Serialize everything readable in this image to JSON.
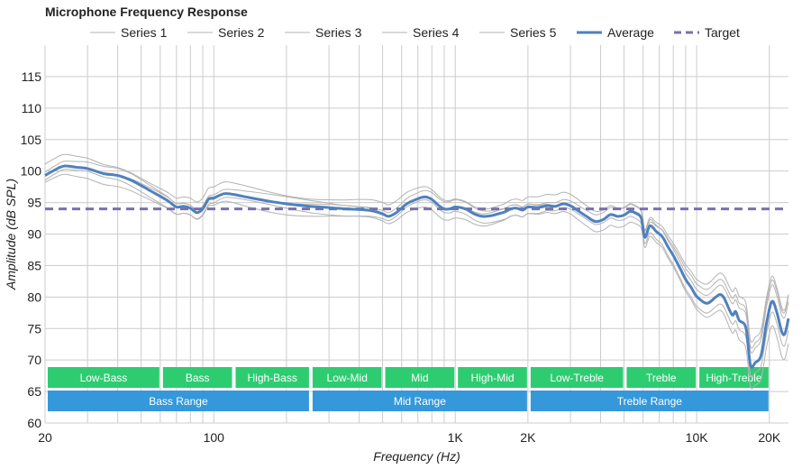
{
  "chart_data": {
    "type": "line",
    "title": "Microphone Frequency Response",
    "xlabel": "Frequency (Hz)",
    "ylabel": "Amplitude (dB SPL)",
    "xscale": "log",
    "xlim": [
      20,
      24000
    ],
    "ylim": [
      60,
      120
    ],
    "yticks": [
      60,
      65,
      70,
      75,
      80,
      85,
      90,
      95,
      100,
      105,
      110,
      115
    ],
    "xticks": [
      {
        "value": 20,
        "label": "20"
      },
      {
        "value": 100,
        "label": "100"
      },
      {
        "value": 1000,
        "label": "1K"
      },
      {
        "value": 2000,
        "label": "2K"
      },
      {
        "value": 10000,
        "label": "10K"
      },
      {
        "value": 20000,
        "label": "20K"
      }
    ],
    "legend_position": "top",
    "legend": [
      "Series 1",
      "Series 2",
      "Series 3",
      "Series 4",
      "Series 5",
      "Average",
      "Target"
    ],
    "target_value": 94,
    "colors": {
      "average": "#4f81bd",
      "series": "#b3b3b3",
      "target": "#7b6fad",
      "band_green": "#2ecc71",
      "band_blue": "#3498db",
      "grid": "#cccccc"
    },
    "average": {
      "name": "Average",
      "points": [
        [
          20,
          99.3
        ],
        [
          22,
          100.2
        ],
        [
          24,
          100.8
        ],
        [
          27,
          100.6
        ],
        [
          30,
          100.4
        ],
        [
          35,
          99.6
        ],
        [
          40,
          99.3
        ],
        [
          45,
          98.6
        ],
        [
          50,
          97.7
        ],
        [
          55,
          96.8
        ],
        [
          60,
          96.0
        ],
        [
          65,
          95.2
        ],
        [
          70,
          94.3
        ],
        [
          75,
          94.4
        ],
        [
          80,
          94.1
        ],
        [
          85,
          93.4
        ],
        [
          90,
          94.0
        ],
        [
          95,
          95.5
        ],
        [
          100,
          95.7
        ],
        [
          110,
          96.4
        ],
        [
          120,
          96.3
        ],
        [
          140,
          95.8
        ],
        [
          170,
          95.2
        ],
        [
          200,
          94.8
        ],
        [
          250,
          94.4
        ],
        [
          300,
          94.2
        ],
        [
          350,
          94.0
        ],
        [
          400,
          93.9
        ],
        [
          450,
          93.7
        ],
        [
          500,
          93.2
        ],
        [
          530,
          92.8
        ],
        [
          570,
          93.4
        ],
        [
          630,
          94.8
        ],
        [
          700,
          95.6
        ],
        [
          750,
          95.9
        ],
        [
          800,
          95.5
        ],
        [
          850,
          94.6
        ],
        [
          900,
          94.0
        ],
        [
          950,
          94.0
        ],
        [
          1000,
          94.3
        ],
        [
          1100,
          94.0
        ],
        [
          1200,
          93.2
        ],
        [
          1300,
          92.8
        ],
        [
          1400,
          92.9
        ],
        [
          1500,
          93.2
        ],
        [
          1600,
          93.5
        ],
        [
          1700,
          94.0
        ],
        [
          1800,
          94.1
        ],
        [
          1900,
          93.8
        ],
        [
          2000,
          94.3
        ],
        [
          2200,
          94.2
        ],
        [
          2400,
          94.5
        ],
        [
          2600,
          94.4
        ],
        [
          2800,
          94.8
        ],
        [
          3000,
          94.5
        ],
        [
          3200,
          93.8
        ],
        [
          3500,
          92.8
        ],
        [
          3800,
          92.0
        ],
        [
          4100,
          92.3
        ],
        [
          4400,
          93.1
        ],
        [
          4700,
          92.8
        ],
        [
          5000,
          93.0
        ],
        [
          5300,
          93.6
        ],
        [
          5600,
          93.3
        ],
        [
          5900,
          92.5
        ],
        [
          6100,
          89.5
        ],
        [
          6400,
          91.3
        ],
        [
          6800,
          90.4
        ],
        [
          7200,
          89.6
        ],
        [
          7600,
          88.0
        ],
        [
          8000,
          86.6
        ],
        [
          8500,
          84.7
        ],
        [
          9000,
          82.8
        ],
        [
          9500,
          81.5
        ],
        [
          10000,
          80.1
        ],
        [
          11000,
          79.0
        ],
        [
          12000,
          80.0
        ],
        [
          12500,
          80.4
        ],
        [
          13000,
          79.8
        ],
        [
          14000,
          77.2
        ],
        [
          14500,
          77.7
        ],
        [
          15000,
          76.3
        ],
        [
          16000,
          75.1
        ],
        [
          16700,
          69.2
        ],
        [
          17500,
          69.6
        ],
        [
          18500,
          70.8
        ],
        [
          19500,
          76.0
        ],
        [
          20500,
          79.3
        ],
        [
          21500,
          77.5
        ],
        [
          22500,
          74.5
        ],
        [
          23200,
          74.2
        ],
        [
          24000,
          76.6
        ]
      ]
    },
    "series": [
      {
        "name": "Series 1",
        "offset": 0.8,
        "hf_gain": 1.5
      },
      {
        "name": "Series 2",
        "offset": -0.8,
        "hf_gain": -1.2
      },
      {
        "name": "Series 3",
        "offset": 1.5,
        "hf_gain": 2.5
      },
      {
        "name": "Series 4",
        "offset": -1.4,
        "hf_gain": -2.2
      },
      {
        "name": "Series 5",
        "offset": 0.2,
        "hf_gain": 3.5
      }
    ],
    "bands": [
      {
        "label": "Low-Bass",
        "from": 20,
        "to": 60,
        "row": 1
      },
      {
        "label": "Bass",
        "from": 60,
        "to": 120,
        "row": 1
      },
      {
        "label": "High-Bass",
        "from": 120,
        "to": 250,
        "row": 1
      },
      {
        "label": "Low-Mid",
        "from": 250,
        "to": 500,
        "row": 1
      },
      {
        "label": "Mid",
        "from": 500,
        "to": 1000,
        "row": 1
      },
      {
        "label": "High-Mid",
        "from": 1000,
        "to": 2000,
        "row": 1
      },
      {
        "label": "Low-Treble",
        "from": 2000,
        "to": 5000,
        "row": 1
      },
      {
        "label": "Treble",
        "from": 5000,
        "to": 10000,
        "row": 1
      },
      {
        "label": "High-Treble",
        "from": 10000,
        "to": 20000,
        "row": 1
      },
      {
        "label": "Bass Range",
        "from": 20,
        "to": 250,
        "row": 2
      },
      {
        "label": "Mid Range",
        "from": 250,
        "to": 2000,
        "row": 2
      },
      {
        "label": "Treble Range",
        "from": 2000,
        "to": 20000,
        "row": 2
      }
    ]
  }
}
